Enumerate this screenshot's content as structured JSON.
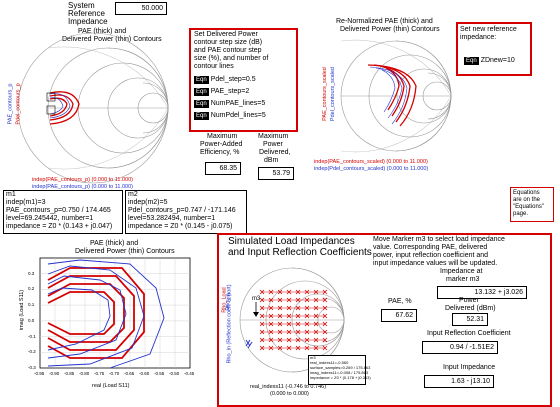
{
  "sysref": {
    "label_1": "System",
    "label_2": "Reference",
    "label_3": "Impedance",
    "value": "50.000"
  },
  "smith1": {
    "title_1": "PAE (thick) and",
    "title_2": "Delivered Power (thin) Contours",
    "side_label_1": "PAE_contours_p",
    "side_label_2": "Pdel_contours_p",
    "bottom_1": "indep(PAE_contours_p) (0.000 to 11.000)",
    "bottom_2": "indep(PAE_contours_p) (0.000 to 11.000)"
  },
  "params": {
    "desc_1": "Set Delivered Power",
    "desc_2": "contour step size (dB)",
    "desc_3": "and PAE contour step",
    "desc_4": "size (%), and number of",
    "desc_5": "contour lines",
    "eqn": "Eqn",
    "lines": [
      "Pdel_step=0.5",
      "PAE_step=2",
      "NumPAE_lines=5",
      "NumPdel_lines=5"
    ]
  },
  "smith2": {
    "title_1": "Re-Normalized PAE (thick) and",
    "title_2": "Delivered Power (thin) Contours",
    "side_label_1": "PAE_contours_scaled",
    "side_label_2": "Pdel_contours_scaled",
    "bottom_1": "indep(PAE_contours_scaled) (0.000 to 11.000)",
    "bottom_2": "indep(Pdel_contours_scaled) (0.000 to 11.000)"
  },
  "newref": {
    "label_1": "Set new reference",
    "label_2": "impedance:",
    "eqn": "Eqn",
    "expr": "ZDnew=10"
  },
  "max_pae": {
    "label_1": "Maximum",
    "label_2": "Power-Added",
    "label_3": "Efficiency, %",
    "value": "68.35"
  },
  "max_pdel": {
    "label_1": "Maximum",
    "label_2": "Power",
    "label_3": "Delivered,",
    "label_4": "dBm",
    "value": "53.79"
  },
  "equations_note": {
    "line_1": "Equations",
    "line_2": "are on the",
    "line_3": "\"Equations\"",
    "line_4": "page."
  },
  "m1": {
    "l1": "m1",
    "l2": "indep(m1)=3",
    "l3": "PAE_contours_p=0.750 / 174.465",
    "l4": "level=69.245442, number=1",
    "l5": "impedance = Z0 * (0.143 + j0.047)"
  },
  "m2": {
    "l1": "m2",
    "l2": "indep(m2)=5",
    "l3": "Pdel_contours_p=0.747 / -171.146",
    "l4": "level=53.282494, number=1",
    "l5": "impedance = Z0 * (0.145 - j0.075)"
  },
  "chart3": {
    "title_1": "PAE (thick) and",
    "title_2": "Delivered Power (thin) Contours",
    "ylabel": "imag (Load S11)",
    "xlabel": "real (Load S11)",
    "xticks": [
      "-0.95",
      "-0.90",
      "-0.85",
      "-0.80",
      "-0.75",
      "-0.70",
      "-0.65",
      "-0.60",
      "-0.55",
      "-0.50",
      "-0.45"
    ],
    "yticks": [
      "0.3",
      "0.2",
      "0.1",
      "0.0",
      "-0.1",
      "-0.2",
      "-0.3"
    ]
  },
  "sim": {
    "title_1": "Simulated Load Impedances",
    "title_2": "and Input Reflection Coefficients",
    "side_1": "Rho_in (Reflection coeff. at port)",
    "side_2": "Rho_Load",
    "side_3": "Rho_in",
    "marker": "m3",
    "bottom_1": "real_indexs11 (-0.746 to 0.746)",
    "bottom_2": "(0.000 to 0.000)",
    "tiny_1": "m3",
    "tiny_2": "real_indexs11=-0.560",
    "tiny_3": "surface_samples=0.269 / 175.863",
    "tiny_4": "imag_indexs11=-0.008 / 175.863",
    "tiny_5": "impedance = Z0 * (0.178 + j0.363)"
  },
  "info": {
    "desc_1": "Move Marker m3 to select load impedance",
    "desc_2": "value. Corresponding PAE, delivered",
    "desc_3": "power, input reflection coefficient and",
    "desc_4": "input impedance values will be updated.",
    "imp_label_1": "Impedance at",
    "imp_label_2": "marker m3",
    "imp_value": "13.132 + j3.026",
    "pae_label": "PAE, %",
    "pae_value": "67.62",
    "pdel_label_1": "Power",
    "pdel_label_2": "Delivered (dBm)",
    "pdel_value": "52.31",
    "refl_label": "Input Reflection Coefficient",
    "refl_value": "0.94 / -1.51E2",
    "inimp_label": "Input Impedance",
    "inimp_value": "1.63 - j13.10"
  },
  "colors": {
    "red": "#d40000",
    "blue": "#2233cc",
    "pink": "#ff66cc"
  }
}
